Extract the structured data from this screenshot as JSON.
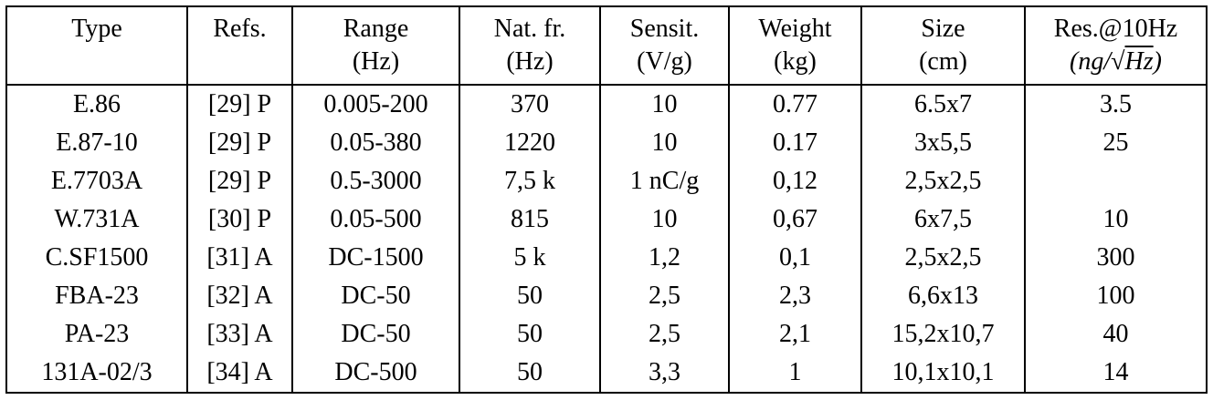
{
  "table": {
    "columns": [
      {
        "label": "Type",
        "unit": ""
      },
      {
        "label": "Refs.",
        "unit": ""
      },
      {
        "label": "Range",
        "unit": "(Hz)"
      },
      {
        "label": "Nat. fr.",
        "unit": "(Hz)"
      },
      {
        "label": "Sensit.",
        "unit": "(V/g)"
      },
      {
        "label": "Weight",
        "unit": "(kg)"
      },
      {
        "label": "Size",
        "unit": "(cm)"
      },
      {
        "label": "Res.@10Hz",
        "unit_parts": {
          "prefix": "(ng/",
          "radical": "√",
          "radicand": "Hz",
          "suffix": ")"
        }
      }
    ],
    "rows": [
      [
        "E.86",
        "[29] P",
        "0.005-200",
        "370",
        "10",
        "0.77",
        "6.5x7",
        "3.5"
      ],
      [
        "E.87-10",
        "[29] P",
        "0.05-380",
        "1220",
        "10",
        "0.17",
        "3x5,5",
        "25"
      ],
      [
        "E.7703A",
        "[29] P",
        "0.5-3000",
        "7,5 k",
        "1 nC/g",
        "0,12",
        "2,5x2,5",
        ""
      ],
      [
        "W.731A",
        "[30] P",
        "0.05-500",
        "815",
        "10",
        "0,67",
        "6x7,5",
        "10"
      ],
      [
        "C.SF1500",
        "[31] A",
        "DC-1500",
        "5 k",
        "1,2",
        "0,1",
        "2,5x2,5",
        "300"
      ],
      [
        "FBA-23",
        "[32] A",
        "DC-50",
        "50",
        "2,5",
        "2,3",
        "6,6x13",
        "100"
      ],
      [
        "PA-23",
        "[33] A",
        "DC-50",
        "50",
        "2,5",
        "2,1",
        "15,2x10,7",
        "40"
      ],
      [
        "131A-02/3",
        "[34] A",
        "DC-500",
        "50",
        "3,3",
        "1",
        "10,1x10,1",
        "14"
      ]
    ],
    "colors": {
      "text": "#000000",
      "background": "#ffffff",
      "rule": "#000000"
    }
  }
}
